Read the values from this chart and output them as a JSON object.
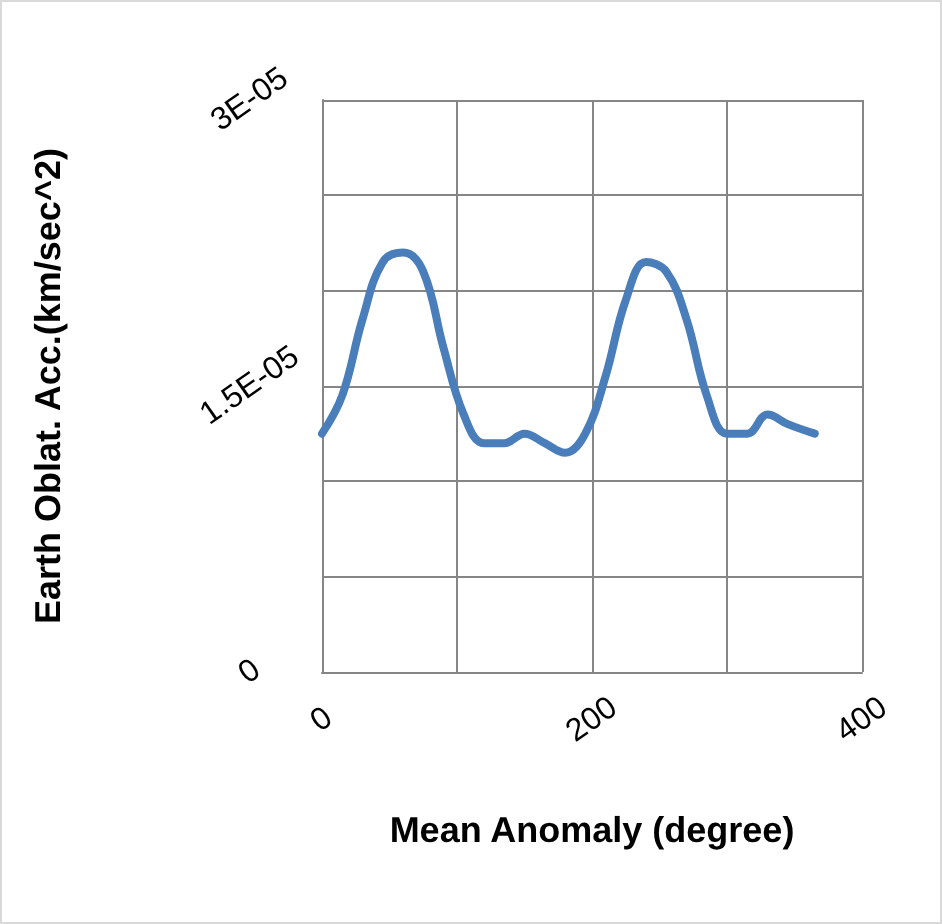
{
  "chart_data": {
    "type": "line",
    "xlabel": "Mean Anomaly (degree)",
    "ylabel": "Earth Oblat. Acc.(km/sec^2)",
    "x": [
      0,
      15,
      30,
      45,
      60,
      75,
      90,
      105,
      120,
      135,
      150,
      165,
      180,
      195,
      210,
      225,
      240,
      255,
      270,
      285,
      300,
      315,
      330,
      345,
      365
    ],
    "series": [
      {
        "color": "#4a7ebb",
        "values": [
          1.25e-05,
          1.45e-05,
          1.85e-05,
          2.15e-05,
          2.2e-05,
          2.1e-05,
          1.7e-05,
          1.35e-05,
          1.2e-05,
          1.2e-05,
          1.25e-05,
          1.2e-05,
          1.15e-05,
          1.25e-05,
          1.55e-05,
          1.95e-05,
          2.15e-05,
          2.1e-05,
          1.85e-05,
          1.45e-05,
          1.25e-05,
          1.25e-05,
          1.35e-05,
          1.3e-05,
          1.25e-05
        ]
      }
    ],
    "xlim": [
      0,
      400
    ],
    "xticks": [
      0,
      {
        "value": 100,
        "label": null
      },
      200,
      {
        "value": 300,
        "label": null
      },
      400
    ],
    "ylim": [
      0,
      3e-05
    ],
    "yticks": [
      {
        "value": 0,
        "label": "0"
      },
      {
        "value": 5e-06,
        "label": null
      },
      {
        "value": 1e-05,
        "label": null
      },
      {
        "value": 1.5e-05,
        "label": "1.5E-05"
      },
      {
        "value": 2e-05,
        "label": null
      },
      {
        "value": 2.5e-05,
        "label": null
      },
      {
        "value": 3e-05,
        "label": "3E-05"
      }
    ],
    "grid": true,
    "marker": "none",
    "line_style": "solid"
  }
}
